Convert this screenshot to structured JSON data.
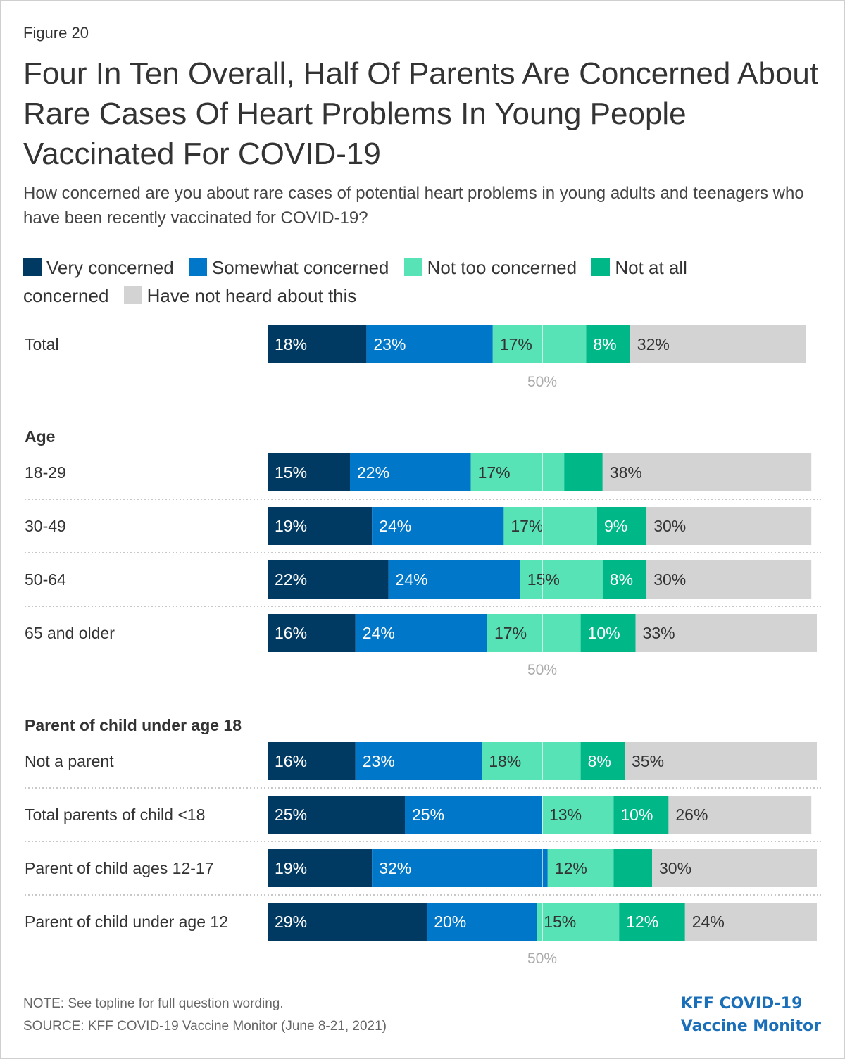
{
  "figure_label": "Figure 20",
  "title": "Four In Ten Overall, Half Of Parents Are Concerned About Rare Cases Of Heart Problems In Young People Vaccinated For COVID-19",
  "subtitle": "How concerned are you about rare cases of potential heart problems in young adults and teenagers who have been recently vaccinated for COVID-19?",
  "note": "NOTE: See topline for full question wording.",
  "source": "SOURCE: KFF COVID-19 Vaccine Monitor (June 8-21, 2021)",
  "brand": {
    "line1": "KFF COVID-19",
    "line2": "Vaccine Monitor"
  },
  "colors": {
    "very": "#003a63",
    "somewhat": "#0077c8",
    "not_too": "#57e3b5",
    "not_at_all": "#00b887",
    "not_heard": "#d3d3d3",
    "midline": "#ffffff",
    "axis_label": "#aaaaaa"
  },
  "chart_data": {
    "type": "stacked-bar-horizontal",
    "title": "Four In Ten Overall, Half Of Parents Are Concerned About Rare Cases Of Heart Problems In Young People Vaccinated For COVID-19",
    "series_names": [
      "Very concerned",
      "Somewhat concerned",
      "Not too concerned",
      "Not at all concerned",
      "Have not heard about this"
    ],
    "series_keys": [
      "very",
      "somewhat",
      "not_too",
      "not_at_all",
      "not_heard"
    ],
    "axis_marker": {
      "value": 50,
      "label": "50%"
    },
    "xlim": [
      0,
      100
    ],
    "groups": [
      {
        "heading": "",
        "rows": [
          {
            "label": "Total",
            "values": [
              18,
              23,
              17,
              8,
              32
            ],
            "labels": [
              "18%",
              "23%",
              "17%",
              "8%",
              "32%"
            ]
          }
        ]
      },
      {
        "heading": "Age",
        "rows": [
          {
            "label": "18-29",
            "values": [
              15,
              22,
              17,
              7,
              38
            ],
            "labels": [
              "15%",
              "22%",
              "17%",
              "",
              "38%"
            ]
          },
          {
            "label": "30-49",
            "values": [
              19,
              24,
              17,
              9,
              30
            ],
            "labels": [
              "19%",
              "24%",
              "17%",
              "9%",
              "30%"
            ]
          },
          {
            "label": "50-64",
            "values": [
              22,
              24,
              15,
              8,
              30
            ],
            "labels": [
              "22%",
              "24%",
              "15%",
              "8%",
              "30%"
            ]
          },
          {
            "label": "65 and older",
            "values": [
              16,
              24,
              17,
              10,
              33
            ],
            "labels": [
              "16%",
              "24%",
              "17%",
              "10%",
              "33%"
            ]
          }
        ]
      },
      {
        "heading": "Parent of child under age 18",
        "rows": [
          {
            "label": "Not a parent",
            "values": [
              16,
              23,
              18,
              8,
              35
            ],
            "labels": [
              "16%",
              "23%",
              "18%",
              "8%",
              "35%"
            ]
          },
          {
            "label": "Total parents of child <18",
            "values": [
              25,
              25,
              13,
              10,
              26
            ],
            "labels": [
              "25%",
              "25%",
              "13%",
              "10%",
              "26%"
            ]
          },
          {
            "label": "Parent of child ages 12-17",
            "values": [
              19,
              32,
              12,
              7,
              30
            ],
            "labels": [
              "19%",
              "32%",
              "12%",
              "",
              "30%"
            ]
          },
          {
            "label": "Parent of child under age 12",
            "values": [
              29,
              20,
              15,
              12,
              24
            ],
            "labels": [
              "29%",
              "20%",
              "15%",
              "12%",
              "24%"
            ]
          }
        ]
      }
    ]
  }
}
